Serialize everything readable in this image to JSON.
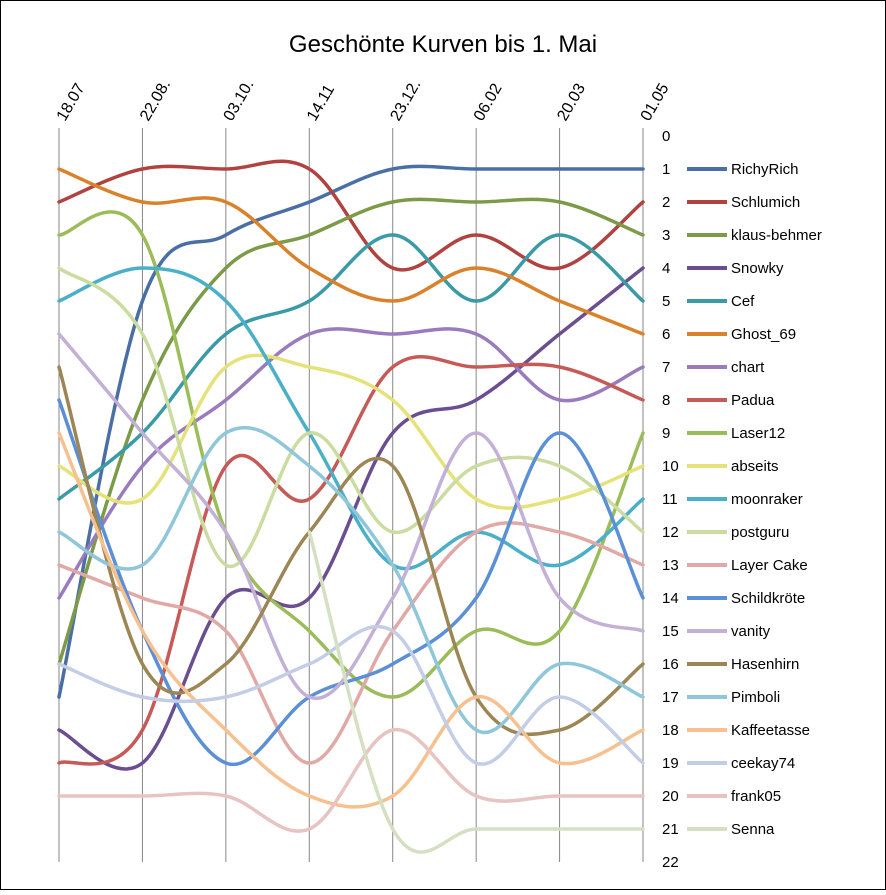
{
  "chart_data": {
    "type": "line",
    "title": "Geschönte Kurven bis 1. Mai",
    "xlabel": "",
    "ylabel": "",
    "categories": [
      "18.07",
      "22.08.",
      "03.10.",
      "14.11",
      "23.12.",
      "06.02",
      "20.03",
      "01.05"
    ],
    "y_ticks": [
      "0",
      "1",
      "2",
      "3",
      "4",
      "5",
      "6",
      "7",
      "8",
      "9",
      "10",
      "11",
      "12",
      "13",
      "14",
      "15",
      "16",
      "17",
      "18",
      "19",
      "20",
      "21",
      "22"
    ],
    "ylim": [
      0,
      22
    ],
    "y_reversed": true,
    "smooth": true,
    "grid": "vertical",
    "legend_position": "right",
    "series": [
      {
        "name": "RichyRich",
        "color": "#4a6fa5",
        "values": [
          17,
          5,
          3,
          2,
          1,
          1,
          1,
          1
        ]
      },
      {
        "name": "Schlumich",
        "color": "#b0433f",
        "values": [
          2,
          1,
          1,
          1,
          4,
          3,
          4,
          2
        ]
      },
      {
        "name": "klaus-behmer",
        "color": "#7c9a48",
        "values": [
          16,
          8,
          4,
          3,
          2,
          2,
          2,
          3
        ]
      },
      {
        "name": "Snowky",
        "color": "#6b4e8f",
        "values": [
          18,
          19,
          14,
          14,
          9,
          8,
          6,
          4
        ]
      },
      {
        "name": "Cef",
        "color": "#3a9aa6",
        "values": [
          11,
          9,
          6,
          5,
          3,
          5,
          3,
          5
        ]
      },
      {
        "name": "Ghost_69",
        "color": "#d9822b",
        "values": [
          1,
          2,
          2,
          4,
          5,
          4,
          5,
          6
        ]
      },
      {
        "name": "chart",
        "color": "#9a7bbd",
        "values": [
          14,
          10,
          8,
          6,
          6,
          6,
          8,
          7
        ]
      },
      {
        "name": "Padua",
        "color": "#c55a57",
        "values": [
          19,
          18,
          10,
          11,
          7,
          7,
          7,
          8
        ]
      },
      {
        "name": "Laser12",
        "color": "#9bbd59",
        "values": [
          3,
          3,
          12,
          15,
          17,
          15,
          15,
          9
        ]
      },
      {
        "name": "abseits",
        "color": "#e6e27a",
        "values": [
          10,
          11,
          7,
          7,
          8,
          11,
          11,
          10
        ]
      },
      {
        "name": "moonraker",
        "color": "#4bafc8",
        "values": [
          5,
          4,
          5,
          9,
          13,
          12,
          13,
          11
        ]
      },
      {
        "name": "postguru",
        "color": "#cbdca0",
        "values": [
          4,
          6,
          13,
          9,
          12,
          10,
          10,
          12
        ]
      },
      {
        "name": "Layer Cake",
        "color": "#e0a9a6",
        "values": [
          13,
          14,
          15,
          19,
          15,
          12,
          12,
          13
        ]
      },
      {
        "name": "Schildkröte",
        "color": "#5b8fd6",
        "values": [
          8,
          15,
          19,
          17,
          16,
          14,
          9,
          14
        ]
      },
      {
        "name": "vanity",
        "color": "#c2b0d6",
        "values": [
          6,
          9,
          12,
          17,
          14,
          9,
          14,
          15
        ]
      },
      {
        "name": "Hasenhirn",
        "color": "#9c8654",
        "values": [
          7,
          16,
          16,
          12,
          10,
          17,
          18,
          16
        ]
      },
      {
        "name": "Pimboli",
        "color": "#8fc6d9",
        "values": [
          12,
          13,
          9,
          10,
          13,
          18,
          16,
          17
        ]
      },
      {
        "name": "Kaffeetasse",
        "color": "#f7c08f",
        "values": [
          9,
          15,
          18,
          20,
          20,
          17,
          19,
          18
        ]
      },
      {
        "name": "ceekay74",
        "color": "#c3cde6",
        "values": [
          16,
          17,
          17,
          16,
          15,
          19,
          17,
          19
        ]
      },
      {
        "name": "frank05",
        "color": "#e7c3c1",
        "values": [
          20,
          20,
          20,
          21,
          18,
          20,
          20,
          20
        ]
      },
      {
        "name": "Senna",
        "color": "#d5e0c2",
        "values": [
          null,
          null,
          null,
          12,
          21,
          21,
          21,
          21
        ]
      }
    ]
  }
}
